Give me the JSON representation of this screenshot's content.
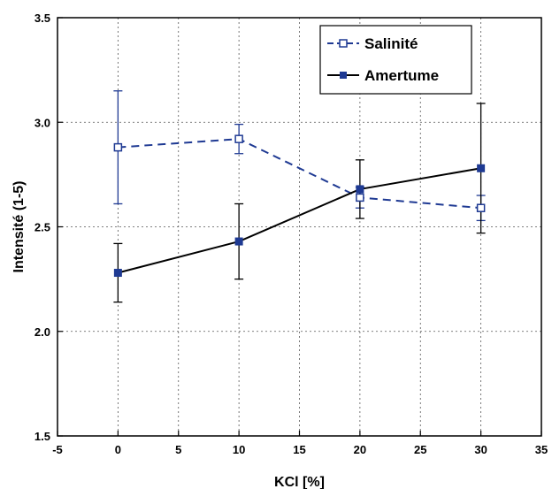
{
  "chart_data": {
    "type": "line",
    "xlabel": "KCl [%]",
    "ylabel": "Intensité (1-5)",
    "xlim": [
      -5,
      35
    ],
    "ylim": [
      1.5,
      3.5
    ],
    "xticks": [
      -5,
      0,
      5,
      10,
      15,
      20,
      25,
      30,
      35
    ],
    "yticks": [
      1.5,
      2.0,
      2.5,
      3.0,
      3.5
    ],
    "ytick_labels": [
      "1.5",
      "2.0",
      "2.5",
      "3.0",
      "3.5"
    ],
    "grid": true,
    "legend_position": "top-right",
    "series": [
      {
        "name": "Salinité",
        "x": [
          0,
          10,
          20,
          30
        ],
        "values": [
          2.88,
          2.92,
          2.64,
          2.59
        ],
        "errors": [
          0.27,
          0.07,
          0.05,
          0.06
        ],
        "color": "#1f3a93",
        "line_style": "dashed",
        "marker": "open-square"
      },
      {
        "name": "Amertume",
        "x": [
          0,
          10,
          20,
          30
        ],
        "values": [
          2.28,
          2.43,
          2.68,
          2.78
        ],
        "errors": [
          0.14,
          0.18,
          0.14,
          0.31
        ],
        "color": "#000000",
        "line_style": "solid",
        "marker": "filled-square",
        "marker_color": "#1f3a93"
      }
    ]
  }
}
